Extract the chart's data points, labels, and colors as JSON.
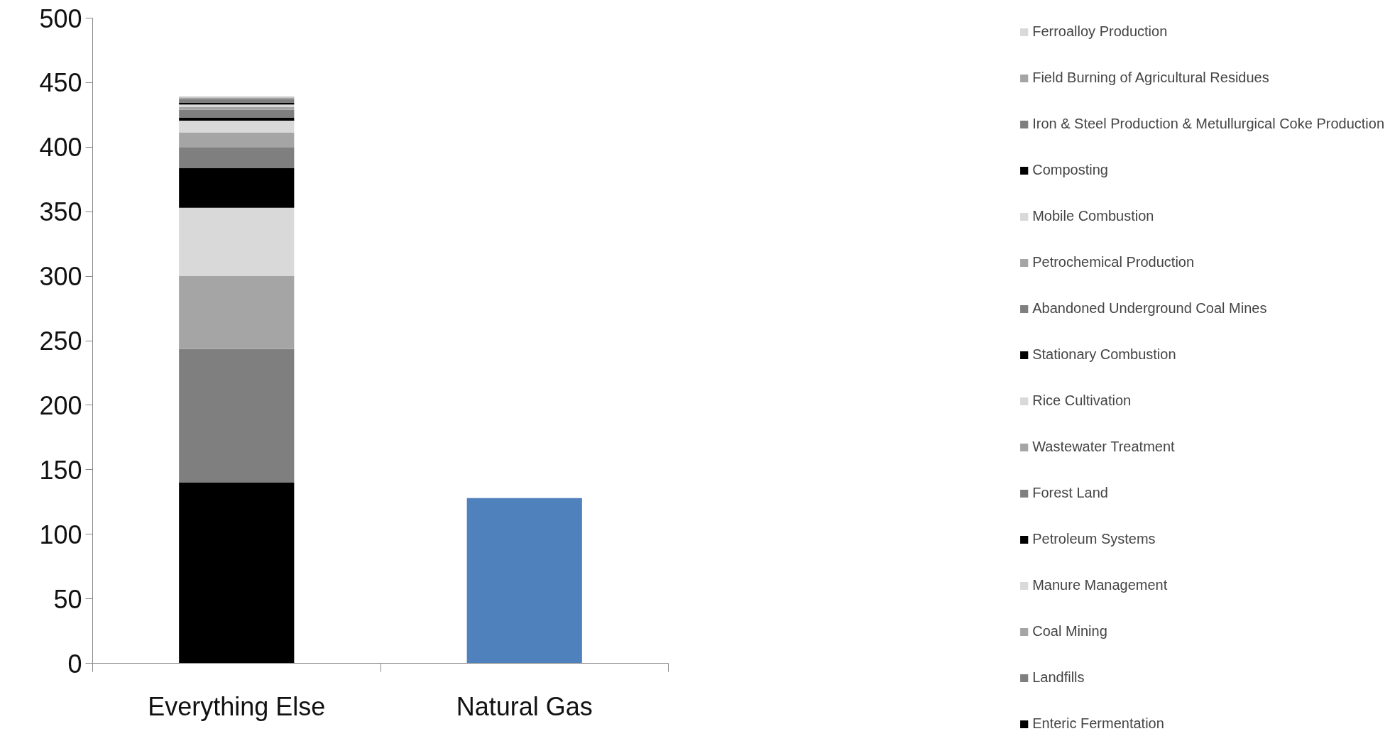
{
  "chart_data": {
    "type": "bar",
    "stacked": true,
    "categories": [
      "Everything Else",
      "Natural Gas"
    ],
    "ylim": [
      0,
      500
    ],
    "yticks": [
      0,
      50,
      100,
      150,
      200,
      250,
      300,
      350,
      400,
      450,
      500
    ],
    "grid": false,
    "legend": "right",
    "series": [
      {
        "name": "Enteric Fermentation",
        "color": "#000000",
        "values": [
          140,
          null
        ]
      },
      {
        "name": "Landfills",
        "color": "#7f7f7f",
        "values": [
          103.5,
          null
        ]
      },
      {
        "name": "Coal Mining",
        "color": "#a5a5a5",
        "values": [
          56.5,
          null
        ]
      },
      {
        "name": "Manure Management",
        "color": "#d9d9d9",
        "values": [
          53,
          null
        ]
      },
      {
        "name": "Petroleum Systems",
        "color": "#000000",
        "values": [
          31,
          null
        ]
      },
      {
        "name": "Forest Land",
        "color": "#7f7f7f",
        "values": [
          16,
          null
        ]
      },
      {
        "name": "Wastewater Treatment",
        "color": "#a5a5a5",
        "values": [
          11.5,
          null
        ]
      },
      {
        "name": "Rice Cultivation",
        "color": "#d9d9d9",
        "values": [
          9,
          null
        ]
      },
      {
        "name": "Stationary Combustion",
        "color": "#000000",
        "values": [
          2.5,
          null
        ]
      },
      {
        "name": "Abandoned Underground Coal Mines",
        "color": "#7f7f7f",
        "values": [
          6,
          null
        ]
      },
      {
        "name": "Petrochemical Production",
        "color": "#a5a5a5",
        "values": [
          2,
          null
        ]
      },
      {
        "name": "Mobile Combustion",
        "color": "#d9d9d9",
        "values": [
          2,
          null
        ]
      },
      {
        "name": "Composting",
        "color": "#000000",
        "values": [
          1.5,
          null
        ]
      },
      {
        "name": "Iron & Steel Production & Metullurgical Coke Production",
        "color": "#7f7f7f",
        "values": [
          3,
          null
        ]
      },
      {
        "name": "Field Burning of Agricultural Residues",
        "color": "#a5a5a5",
        "values": [
          1,
          null
        ]
      },
      {
        "name": "Ferroalloy Production",
        "color": "#d9d9d9",
        "values": [
          1,
          null
        ]
      },
      {
        "color": "#4f81bd",
        "values": [
          null,
          128
        ]
      }
    ]
  }
}
